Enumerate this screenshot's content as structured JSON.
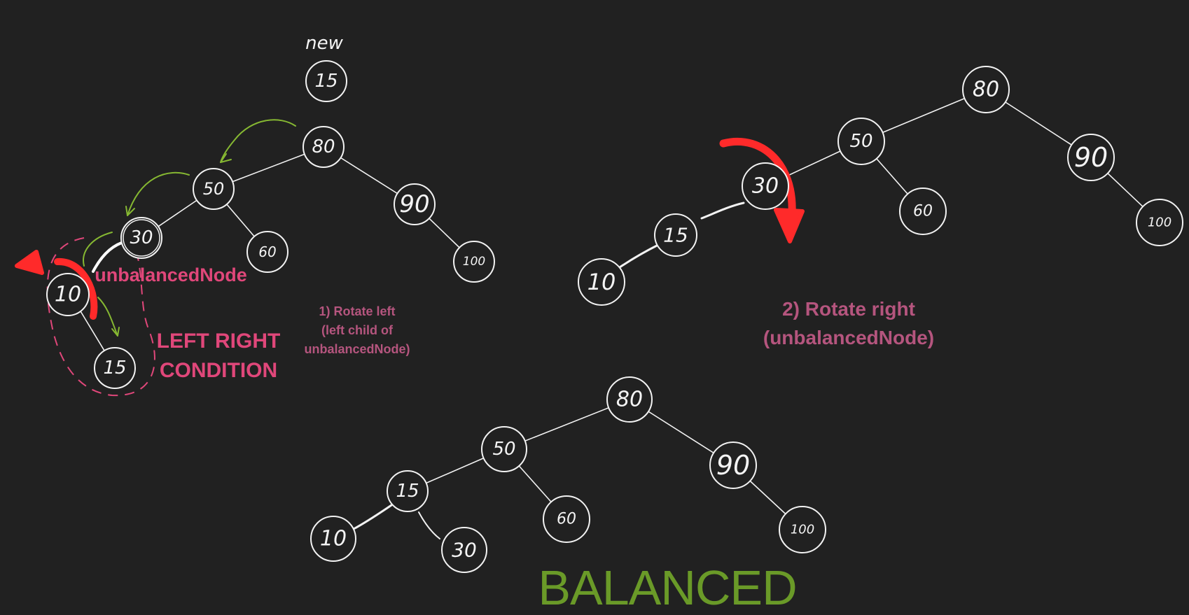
{
  "new_label": "new",
  "node_values": {
    "n80": "80",
    "n50": "50",
    "n90": "90",
    "n30": "30",
    "n60": "60",
    "n100": "100",
    "n10": "10",
    "n15": "15"
  },
  "labels": {
    "unbalanced_node": "unbalancedNode",
    "condition_line1": "LEFT RIGHT",
    "condition_line2": "CONDITION",
    "step1_line1": "1) Rotate left",
    "step1_line2": "(left  child of",
    "step1_line3": "unbalancedNode)",
    "step2_line1": "2) Rotate right",
    "step2_line2": "(unbalancedNode)",
    "balanced": "BALANCED"
  },
  "colors": {
    "background": "#212121",
    "pink": "#e0477a",
    "pink_muted": "#b5557e",
    "red_arrow": "#ff2a2a",
    "green_arrow": "#86b832",
    "balanced_green": "#6a9a28"
  },
  "trees": [
    {
      "name": "left-right-condition",
      "nodes": [
        "80",
        "50",
        "90",
        "30",
        "60",
        "100",
        "10",
        "15"
      ],
      "edges": [
        [
          "80",
          "50"
        ],
        [
          "80",
          "90"
        ],
        [
          "50",
          "30"
        ],
        [
          "50",
          "60"
        ],
        [
          "90",
          "100"
        ],
        [
          "30",
          "10"
        ],
        [
          "10",
          "15"
        ]
      ]
    },
    {
      "name": "after-rotate-left",
      "nodes": [
        "80",
        "50",
        "90",
        "30",
        "60",
        "100",
        "15",
        "10"
      ],
      "edges": [
        [
          "80",
          "50"
        ],
        [
          "80",
          "90"
        ],
        [
          "50",
          "30"
        ],
        [
          "50",
          "60"
        ],
        [
          "90",
          "100"
        ],
        [
          "30",
          "15"
        ],
        [
          "15",
          "10"
        ]
      ]
    },
    {
      "name": "balanced",
      "nodes": [
        "80",
        "50",
        "90",
        "15",
        "60",
        "100",
        "10",
        "30"
      ],
      "edges": [
        [
          "80",
          "50"
        ],
        [
          "80",
          "90"
        ],
        [
          "50",
          "15"
        ],
        [
          "50",
          "60"
        ],
        [
          "90",
          "100"
        ],
        [
          "15",
          "10"
        ],
        [
          "15",
          "30"
        ]
      ]
    }
  ]
}
